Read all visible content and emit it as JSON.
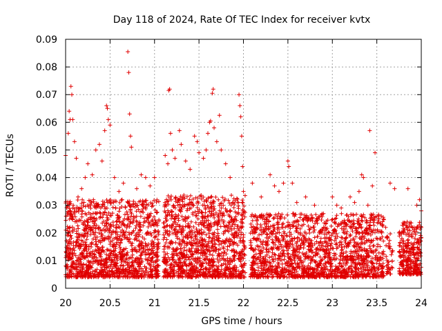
{
  "chart_data": {
    "type": "scatter",
    "title": "Day 118 of 2024, Rate Of TEC Index for receiver kvtx",
    "xlabel": "GPS time / hours",
    "ylabel": "ROTI / TECUs",
    "xlim": [
      20,
      24
    ],
    "ylim": [
      0,
      0.09
    ],
    "xticks": [
      "20",
      "20.5",
      "21",
      "21.5",
      "22",
      "22.5",
      "23",
      "23.5",
      "24"
    ],
    "yticks": [
      "0",
      "0.01",
      "0.02",
      "0.03",
      "0.04",
      "0.05",
      "0.06",
      "0.07",
      "0.08",
      "0.09"
    ],
    "grid": true,
    "marker": "+",
    "color": "#e00000",
    "series": [
      {
        "name": "",
        "points": [
          [
            20.0,
            0.048
          ],
          [
            20.03,
            0.056
          ],
          [
            20.04,
            0.064
          ],
          [
            20.05,
            0.061
          ],
          [
            20.06,
            0.073
          ],
          [
            20.07,
            0.07
          ],
          [
            20.08,
            0.061
          ],
          [
            20.1,
            0.053
          ],
          [
            20.12,
            0.047
          ],
          [
            20.02,
            0.03
          ],
          [
            20.05,
            0.028
          ],
          [
            20.08,
            0.025
          ],
          [
            20.14,
            0.033
          ],
          [
            20.18,
            0.036
          ],
          [
            20.22,
            0.04
          ],
          [
            20.25,
            0.045
          ],
          [
            20.3,
            0.041
          ],
          [
            20.34,
            0.05
          ],
          [
            20.38,
            0.052
          ],
          [
            20.41,
            0.046
          ],
          [
            20.44,
            0.057
          ],
          [
            20.46,
            0.066
          ],
          [
            20.47,
            0.065
          ],
          [
            20.48,
            0.061
          ],
          [
            20.5,
            0.059
          ],
          [
            20.55,
            0.04
          ],
          [
            20.6,
            0.035
          ],
          [
            20.65,
            0.038
          ],
          [
            20.7,
            0.0855
          ],
          [
            20.71,
            0.078
          ],
          [
            20.72,
            0.063
          ],
          [
            20.73,
            0.055
          ],
          [
            20.74,
            0.051
          ],
          [
            20.8,
            0.036
          ],
          [
            20.85,
            0.041
          ],
          [
            20.9,
            0.04
          ],
          [
            20.95,
            0.037
          ],
          [
            21.0,
            0.04
          ],
          [
            21.12,
            0.048
          ],
          [
            21.15,
            0.045
          ],
          [
            21.16,
            0.0715
          ],
          [
            21.17,
            0.072
          ],
          [
            21.18,
            0.056
          ],
          [
            21.2,
            0.05
          ],
          [
            21.23,
            0.047
          ],
          [
            21.28,
            0.057
          ],
          [
            21.3,
            0.052
          ],
          [
            21.35,
            0.046
          ],
          [
            21.4,
            0.043
          ],
          [
            21.45,
            0.055
          ],
          [
            21.48,
            0.053
          ],
          [
            21.5,
            0.049
          ],
          [
            21.55,
            0.047
          ],
          [
            21.58,
            0.05
          ],
          [
            21.6,
            0.056
          ],
          [
            21.62,
            0.06
          ],
          [
            21.63,
            0.0605
          ],
          [
            21.65,
            0.0705
          ],
          [
            21.66,
            0.072
          ],
          [
            21.67,
            0.058
          ],
          [
            21.7,
            0.053
          ],
          [
            21.73,
            0.0625
          ],
          [
            21.75,
            0.05
          ],
          [
            21.8,
            0.045
          ],
          [
            21.85,
            0.04
          ],
          [
            21.95,
            0.07
          ],
          [
            21.96,
            0.066
          ],
          [
            21.97,
            0.062
          ],
          [
            21.98,
            0.055
          ],
          [
            21.99,
            0.044
          ],
          [
            22.0,
            0.035
          ],
          [
            22.1,
            0.038
          ],
          [
            22.2,
            0.033
          ],
          [
            22.3,
            0.041
          ],
          [
            22.35,
            0.037
          ],
          [
            22.4,
            0.035
          ],
          [
            22.45,
            0.038
          ],
          [
            22.5,
            0.046
          ],
          [
            22.51,
            0.044
          ],
          [
            22.55,
            0.038
          ],
          [
            22.6,
            0.031
          ],
          [
            22.7,
            0.033
          ],
          [
            22.8,
            0.03
          ],
          [
            22.9,
            0.027
          ],
          [
            23.0,
            0.033
          ],
          [
            23.05,
            0.03
          ],
          [
            23.1,
            0.029
          ],
          [
            23.2,
            0.033
          ],
          [
            23.25,
            0.031
          ],
          [
            23.3,
            0.035
          ],
          [
            23.33,
            0.041
          ],
          [
            23.35,
            0.04
          ],
          [
            23.4,
            0.03
          ],
          [
            23.42,
            0.057
          ],
          [
            23.45,
            0.037
          ],
          [
            23.48,
            0.049
          ],
          [
            23.5,
            0.026
          ],
          [
            23.6,
            0.022
          ],
          [
            23.65,
            0.038
          ],
          [
            23.7,
            0.036
          ],
          [
            23.75,
            0.02
          ],
          [
            23.8,
            0.015
          ],
          [
            23.85,
            0.036
          ],
          [
            23.9,
            0.022
          ],
          [
            23.95,
            0.03
          ],
          [
            23.98,
            0.032
          ],
          [
            24.0,
            0.028
          ]
        ]
      }
    ],
    "dense_regions": [
      {
        "x": [
          20.0,
          21.05
        ],
        "y": [
          0.004,
          0.032
        ],
        "n": 1300
      },
      {
        "x": [
          21.1,
          22.02
        ],
        "y": [
          0.004,
          0.034
        ],
        "n": 1150
      },
      {
        "x": [
          22.08,
          23.58
        ],
        "y": [
          0.004,
          0.027
        ],
        "n": 1600
      },
      {
        "x": [
          23.6,
          23.68
        ],
        "y": [
          0.005,
          0.023
        ],
        "n": 40
      },
      {
        "x": [
          23.75,
          24.0
        ],
        "y": [
          0.005,
          0.024
        ],
        "n": 300
      }
    ]
  }
}
